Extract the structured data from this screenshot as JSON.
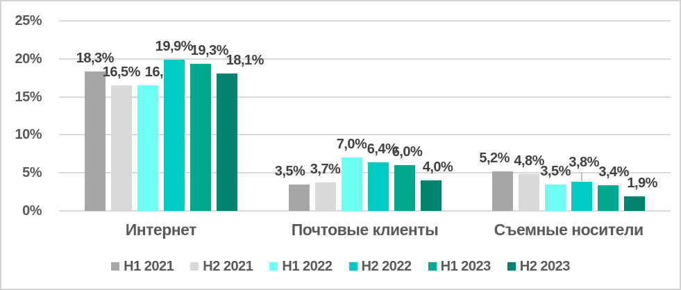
{
  "window": {
    "background": "#ffffff",
    "border_color": "#d2d2d2"
  },
  "chart_data": {
    "type": "bar",
    "title": "",
    "xlabel": "",
    "ylabel": "",
    "categories": [
      "Интернет",
      "Почтовые клиенты",
      "Съемные носители"
    ],
    "series": [
      {
        "name": "H1 2021",
        "color": "#a6a6a6",
        "values": [
          18.3,
          3.5,
          5.2
        ]
      },
      {
        "name": "H2 2021",
        "color": "#d9d9d9",
        "values": [
          16.5,
          3.7,
          4.8
        ]
      },
      {
        "name": "H1 2022",
        "color": "#6ffff2",
        "values": [
          16.5,
          7.0,
          3.5
        ]
      },
      {
        "name": "H2 2022",
        "color": "#00cbc3",
        "values": [
          19.9,
          6.4,
          3.8
        ]
      },
      {
        "name": "H1 2023",
        "color": "#00a98d",
        "values": [
          19.3,
          6.0,
          3.4
        ]
      },
      {
        "name": "H2 2023",
        "color": "#008472",
        "values": [
          18.1,
          4.0,
          1.9
        ]
      }
    ],
    "ylim": [
      0,
      25
    ],
    "yticks": [
      0,
      5,
      10,
      15,
      20,
      25
    ],
    "ytick_suffix": "%",
    "data_label_suffix": "%",
    "decimal_separator": ",",
    "grid": true,
    "legend_position": "bottom",
    "colors": {
      "grid": "#d9d9d9",
      "axis_text": "#595959",
      "data_label_text": "#404040",
      "leader_line": "#bfbfbf"
    },
    "label_offsets": {
      "dx": [
        [
          0,
          0,
          23,
          0,
          13,
          26
        ],
        [
          -13,
          0,
          0,
          6,
          4,
          10
        ],
        [
          -12,
          0,
          0,
          3,
          8,
          11
        ]
      ],
      "raise": [
        [
          0,
          0,
          0,
          0,
          0,
          0
        ],
        [
          0,
          0,
          0,
          0,
          0,
          0
        ],
        [
          0,
          0,
          0,
          9,
          0,
          0
        ]
      ]
    }
  }
}
